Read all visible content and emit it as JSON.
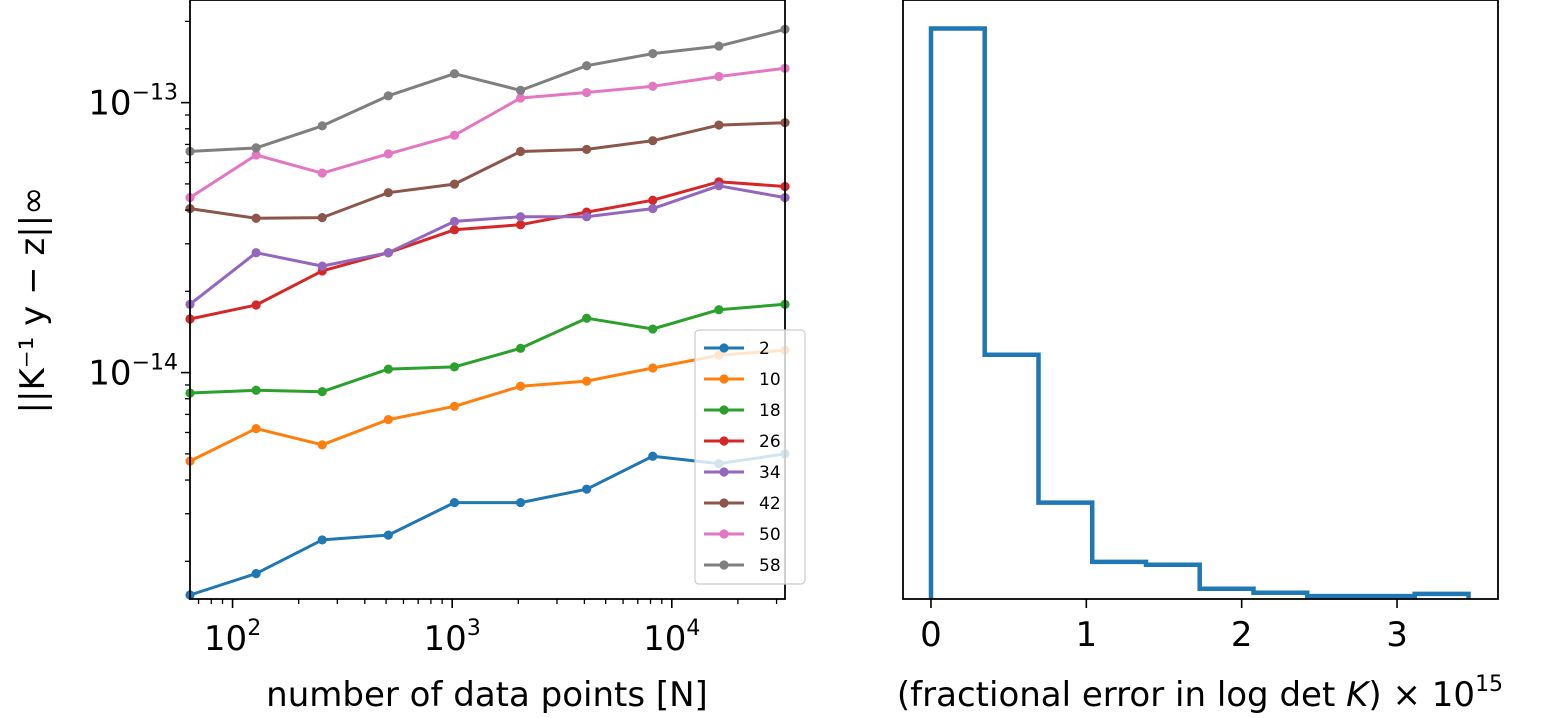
{
  "chart_data": [
    {
      "type": "line",
      "xscale": "log",
      "yscale": "log",
      "xlabel": "number of data points [N]",
      "ylabel": "||K⁻¹ y − z||∞",
      "xlim": [
        64,
        32768
      ],
      "ylim": [
        1.45e-15,
        2.4e-13
      ],
      "x_ticks": [
        {
          "value": 100,
          "base": "10",
          "exp": "2"
        },
        {
          "value": 1000,
          "base": "10",
          "exp": "3"
        },
        {
          "value": 10000,
          "base": "10",
          "exp": "4"
        }
      ],
      "y_ticks": [
        {
          "value": 1e-14,
          "base": "10",
          "exp": "−14"
        },
        {
          "value": 1e-13,
          "base": "10",
          "exp": "−13"
        }
      ],
      "x": [
        64,
        128,
        256,
        512,
        1024,
        2048,
        4096,
        8192,
        16384,
        32768
      ],
      "legend_position": "lower-right",
      "series": [
        {
          "name": "2",
          "color": "#1f77b4",
          "values": [
            1.5e-15,
            1.8e-15,
            2.4e-15,
            2.5e-15,
            3.3e-15,
            3.3e-15,
            3.7e-15,
            4.9e-15,
            4.6e-15,
            5e-15
          ]
        },
        {
          "name": "10",
          "color": "#ff7f0e",
          "values": [
            4.7e-15,
            6.2e-15,
            5.4e-15,
            6.7e-15,
            7.5e-15,
            8.9e-15,
            9.3e-15,
            1.04e-14,
            1.16e-14,
            1.21e-14
          ]
        },
        {
          "name": "18",
          "color": "#2ca02c",
          "values": [
            8.4e-15,
            8.6e-15,
            8.5e-15,
            1.03e-14,
            1.05e-14,
            1.23e-14,
            1.59e-14,
            1.45e-14,
            1.71e-14,
            1.79e-14
          ]
        },
        {
          "name": "26",
          "color": "#d62728",
          "values": [
            1.58e-14,
            1.78e-14,
            2.38e-14,
            2.78e-14,
            3.38e-14,
            3.53e-14,
            3.93e-14,
            4.35e-14,
            5.09e-14,
            4.89e-14
          ]
        },
        {
          "name": "34",
          "color": "#9467bd",
          "values": [
            1.79e-14,
            2.78e-14,
            2.48e-14,
            2.78e-14,
            3.63e-14,
            3.78e-14,
            3.78e-14,
            4.05e-14,
            4.92e-14,
            4.45e-14
          ]
        },
        {
          "name": "42",
          "color": "#8c564b",
          "values": [
            4.05e-14,
            3.73e-14,
            3.75e-14,
            4.64e-14,
            4.99e-14,
            6.59e-14,
            6.71e-14,
            7.23e-14,
            8.26e-14,
            8.43e-14
          ]
        },
        {
          "name": "50",
          "color": "#e377c2",
          "values": [
            4.45e-14,
            6.4e-14,
            5.48e-14,
            6.46e-14,
            7.57e-14,
            1.04e-13,
            1.09e-13,
            1.15e-13,
            1.25e-13,
            1.34e-13
          ]
        },
        {
          "name": "58",
          "color": "#7f7f7f",
          "values": [
            6.6e-14,
            6.8e-14,
            8.2e-14,
            1.06e-13,
            1.28e-13,
            1.11e-13,
            1.37e-13,
            1.52e-13,
            1.62e-13,
            1.87e-13
          ]
        }
      ]
    },
    {
      "type": "histogram",
      "style": "step",
      "color": "#1f77b4",
      "xlabel_parts": {
        "open": "(fractional error in ",
        "log": "log",
        "det": "det",
        "var": "K",
        "close": ") × ",
        "base": "10",
        "exp": "15"
      },
      "xlim": [
        -0.18,
        3.65
      ],
      "x_ticks": [
        {
          "value": 0,
          "label": "0"
        },
        {
          "value": 1,
          "label": "1"
        },
        {
          "value": 2,
          "label": "2"
        },
        {
          "value": 3,
          "label": "3"
        }
      ],
      "bin_edges": [
        0,
        0.346,
        0.692,
        1.038,
        1.384,
        1.73,
        2.076,
        2.422,
        2.768,
        3.114,
        3.46
      ],
      "counts": [
        1000,
        428,
        169,
        65,
        60,
        18,
        11,
        5,
        5,
        9
      ],
      "ymax": 1050,
      "ytick_labels": "none"
    }
  ]
}
